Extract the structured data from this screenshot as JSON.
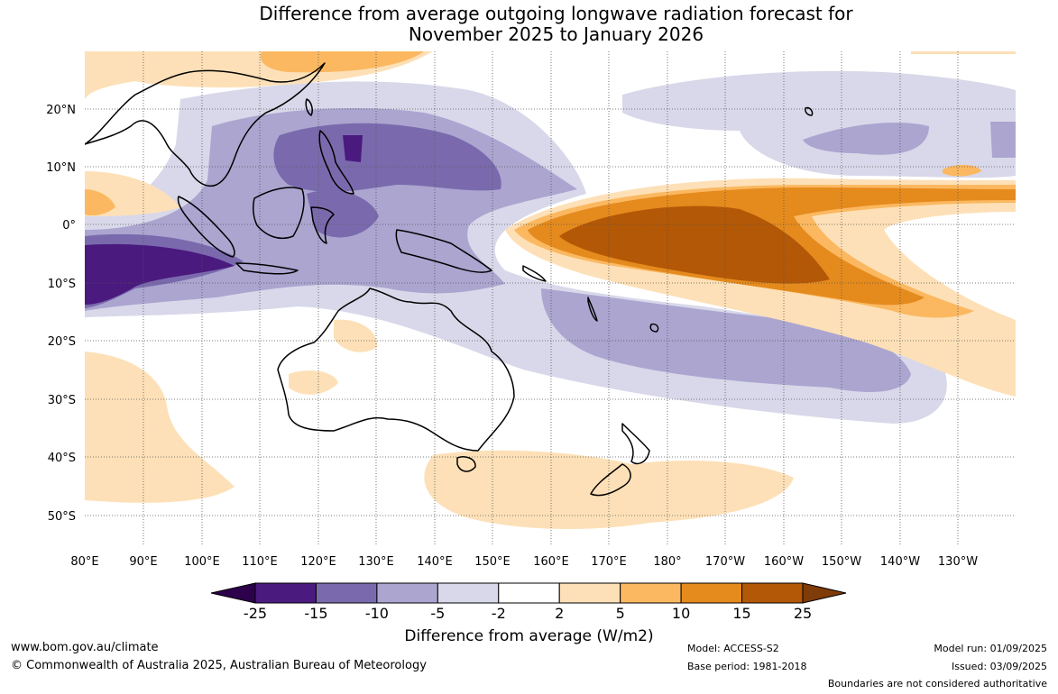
{
  "title": {
    "line1": "Difference from average outgoing longwave radiation forecast for",
    "line2": "November 2025 to January 2026"
  },
  "map": {
    "lat_labels": [
      "20°N",
      "10°N",
      "0°",
      "10°S",
      "20°S",
      "30°S",
      "40°S",
      "50°S"
    ],
    "lon_labels": [
      "80°E",
      "90°E",
      "100°E",
      "110°E",
      "120°E",
      "130°E",
      "140°E",
      "150°E",
      "160°E",
      "170°E",
      "180°",
      "170°W",
      "160°W",
      "150°W",
      "140°W",
      "130°W"
    ]
  },
  "colorbar": {
    "labels": [
      "-25",
      "-15",
      "-10",
      "-5",
      "-2",
      "2",
      "5",
      "10",
      "15",
      "25"
    ],
    "colors": [
      "#4a1a7f",
      "#7a6aad",
      "#aba5d0",
      "#d8d8ea",
      "#ffffff",
      "#fde0b7",
      "#fbb860",
      "#e58a1d",
      "#b35806",
      "#7f3b08",
      "#2d004b"
    ],
    "title": "Difference from average (W/m2)"
  },
  "footer": {
    "url": "www.bom.gov.au/climate",
    "copyright": "© Commonwealth of Australia 2025, Australian Bureau of Meteorology",
    "model": "Model: ACCESS-S2",
    "base_period": "Base period: 1981-2018",
    "model_run": "Model run: 01/09/2025",
    "issued": "Issued: 03/09/2025",
    "disclaimer": "Boundaries are not considered authoritative"
  }
}
